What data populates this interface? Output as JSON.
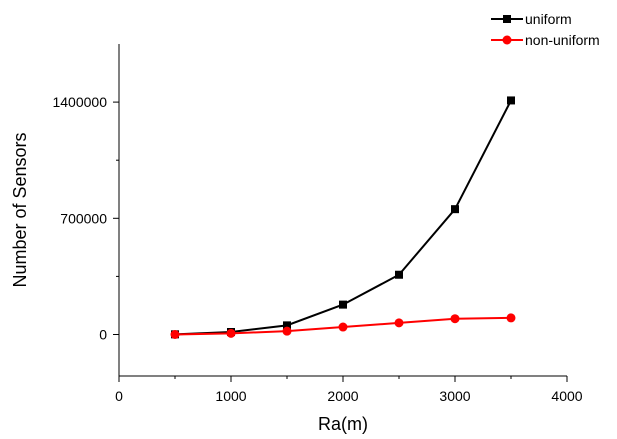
{
  "chart_data": {
    "type": "line",
    "xlabel": "Ra(m)",
    "ylabel": "Number of Sensors",
    "xlim": [
      0,
      4000
    ],
    "ylim": [
      -250000,
      1750000
    ],
    "x_ticks": [
      "0",
      "1000",
      "2000",
      "3000",
      "4000"
    ],
    "x_tick_values": [
      0,
      1000,
      2000,
      3000,
      4000
    ],
    "y_ticks": [
      "0",
      "700000",
      "1400000"
    ],
    "y_tick_values": [
      0,
      700000,
      1400000
    ],
    "grid": false,
    "legend_position": "top-right",
    "x": [
      500,
      1000,
      1500,
      2000,
      2500,
      3000,
      3500
    ],
    "series": [
      {
        "name": "uniform",
        "color": "#000000",
        "marker": "square",
        "values": [
          1000,
          15000,
          55000,
          180000,
          360000,
          755000,
          1410000
        ]
      },
      {
        "name": "non-uniform",
        "color": "#ff0000",
        "marker": "circle",
        "values": [
          0,
          7000,
          20000,
          45000,
          70000,
          95000,
          100000
        ]
      }
    ]
  }
}
